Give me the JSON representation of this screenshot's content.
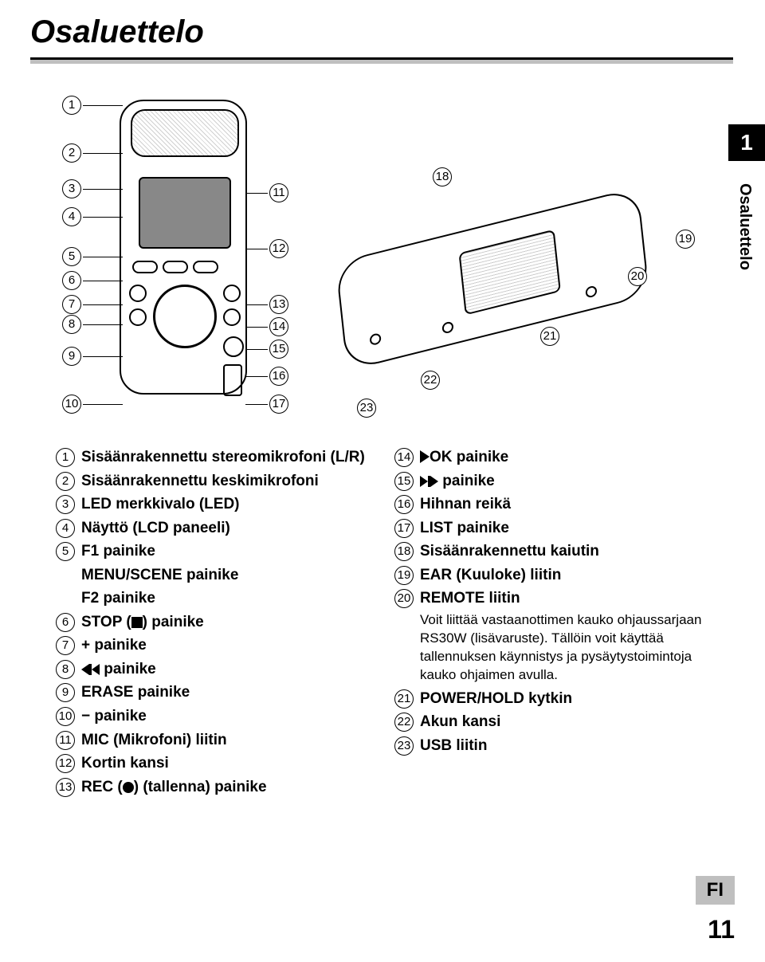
{
  "heading": "Osaluettelo",
  "side_tab": "1",
  "side_label": "Osaluettelo",
  "callouts_left": [
    "1",
    "2",
    "3",
    "4",
    "5",
    "6",
    "7",
    "8",
    "9",
    "10"
  ],
  "callouts_right_front": [
    "11",
    "12",
    "13",
    "14",
    "15",
    "16",
    "17"
  ],
  "callouts_back": [
    "18",
    "19",
    "20",
    "21",
    "22",
    "23"
  ],
  "col1": [
    {
      "n": "1",
      "t": "Sisäänrakennettu stereomikrofoni (L/R)"
    },
    {
      "n": "2",
      "t": "Sisäänrakennettu keskimikrofoni"
    },
    {
      "n": "3",
      "t": "LED merkkivalo (LED)"
    },
    {
      "n": "4",
      "t": "Näyttö (LCD paneeli)"
    },
    {
      "n": "5",
      "t": "F1 painike"
    }
  ],
  "col1_indent": [
    "MENU/SCENE painike",
    "F2 painike"
  ],
  "col1b": [
    {
      "n": "6",
      "t": "STOP (",
      "sym": "square",
      "t2": ") painike"
    },
    {
      "n": "7",
      "t": "+ painike"
    },
    {
      "n": "8",
      "t": "",
      "sym": "prev",
      "t2": " painike"
    },
    {
      "n": "9",
      "t": "ERASE painike"
    },
    {
      "n": "10",
      "t": "− painike"
    },
    {
      "n": "11",
      "t": "MIC (Mikrofoni) liitin"
    },
    {
      "n": "12",
      "t": "Kortin kansi"
    },
    {
      "n": "13",
      "t": "REC (",
      "sym": "circle",
      "t2": ") (tallenna) painike"
    }
  ],
  "col2": [
    {
      "n": "14",
      "t": "",
      "sym": "play",
      "t2": "OK painike"
    },
    {
      "n": "15",
      "t": "",
      "sym": "next",
      "t2": " painike"
    },
    {
      "n": "16",
      "t": "Hihnan reikä"
    },
    {
      "n": "17",
      "t": "LIST painike"
    },
    {
      "n": "18",
      "t": "Sisäänrakennettu kaiutin"
    },
    {
      "n": "19",
      "t": "EAR (Kuuloke) liitin"
    },
    {
      "n": "20",
      "t": "REMOTE liitin"
    }
  ],
  "note": "Voit liittää vastaanottimen kauko ohjaussarjaan RS30W (lisävaruste). Tällöin voit käyttää tallennuksen käynnistys ja pysäytystoimintoja kauko ohjaimen avulla.",
  "col2b": [
    {
      "n": "21",
      "t": "POWER/HOLD kytkin"
    },
    {
      "n": "22",
      "t": "Akun kansi"
    },
    {
      "n": "23",
      "t": "USB liitin"
    }
  ],
  "footer_fi": "FI",
  "footer_page": "11",
  "colors": {
    "text": "#000000",
    "bg": "#ffffff",
    "tab_bg": "#000000",
    "tab_fg": "#ffffff",
    "fi_bg": "#bfbfbf"
  }
}
